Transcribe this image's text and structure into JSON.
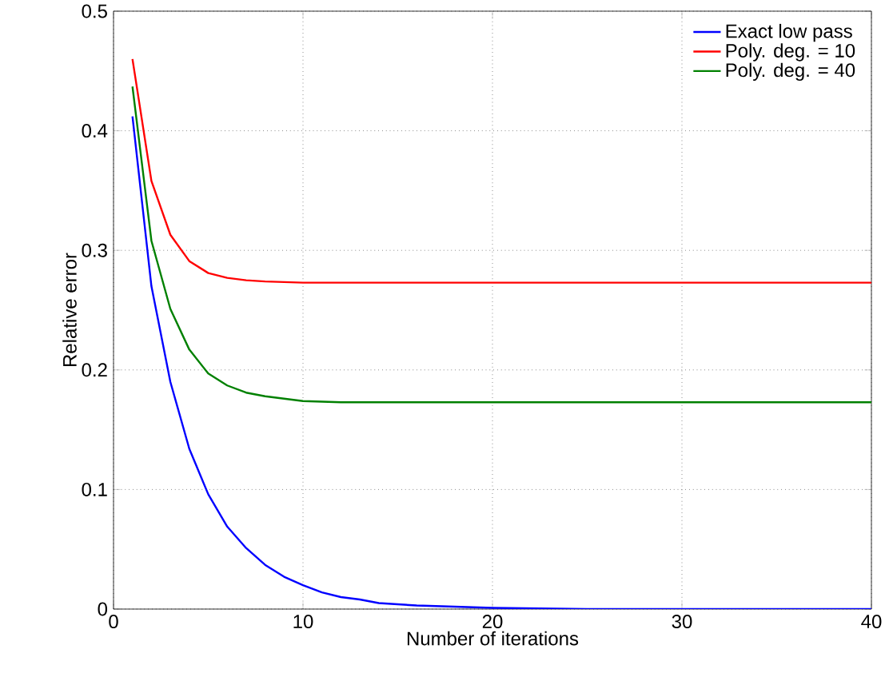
{
  "chart_data": {
    "type": "line",
    "xlabel": "Number of iterations",
    "ylabel": "Relative error",
    "xlim": [
      0,
      40
    ],
    "ylim": [
      0,
      0.5
    ],
    "xticks": [
      0,
      10,
      20,
      30,
      40
    ],
    "yticks": [
      0,
      0.1,
      0.2,
      0.3,
      0.4,
      0.5
    ],
    "grid": true,
    "legend": "top right",
    "line_style": "solid",
    "marker": "none",
    "series": [
      {
        "name": "Exact low pass",
        "color": "#0000ff",
        "x": [
          1,
          2,
          3,
          4,
          5,
          6,
          7,
          8,
          9,
          10,
          11,
          12,
          13,
          14,
          15,
          16,
          18,
          20,
          25,
          30,
          40
        ],
        "values": [
          0.412,
          0.27,
          0.19,
          0.134,
          0.096,
          0.069,
          0.051,
          0.037,
          0.027,
          0.02,
          0.014,
          0.01,
          0.008,
          0.005,
          0.004,
          0.003,
          0.002,
          0.001,
          0,
          0,
          0
        ]
      },
      {
        "name": "Poly. deg. = 10",
        "color": "#ff0000",
        "x": [
          1,
          2,
          3,
          4,
          5,
          6,
          7,
          8,
          10,
          15,
          20,
          30,
          40
        ],
        "values": [
          0.46,
          0.358,
          0.313,
          0.291,
          0.281,
          0.277,
          0.275,
          0.274,
          0.273,
          0.273,
          0.273,
          0.273,
          0.273
        ]
      },
      {
        "name": "Poly. deg. = 40",
        "color": "#008000",
        "x": [
          1,
          2,
          3,
          4,
          5,
          6,
          7,
          8,
          9,
          10,
          12,
          15,
          20,
          30,
          40
        ],
        "values": [
          0.437,
          0.308,
          0.251,
          0.217,
          0.197,
          0.187,
          0.181,
          0.178,
          0.176,
          0.174,
          0.173,
          0.173,
          0.173,
          0.173,
          0.173
        ]
      }
    ]
  }
}
